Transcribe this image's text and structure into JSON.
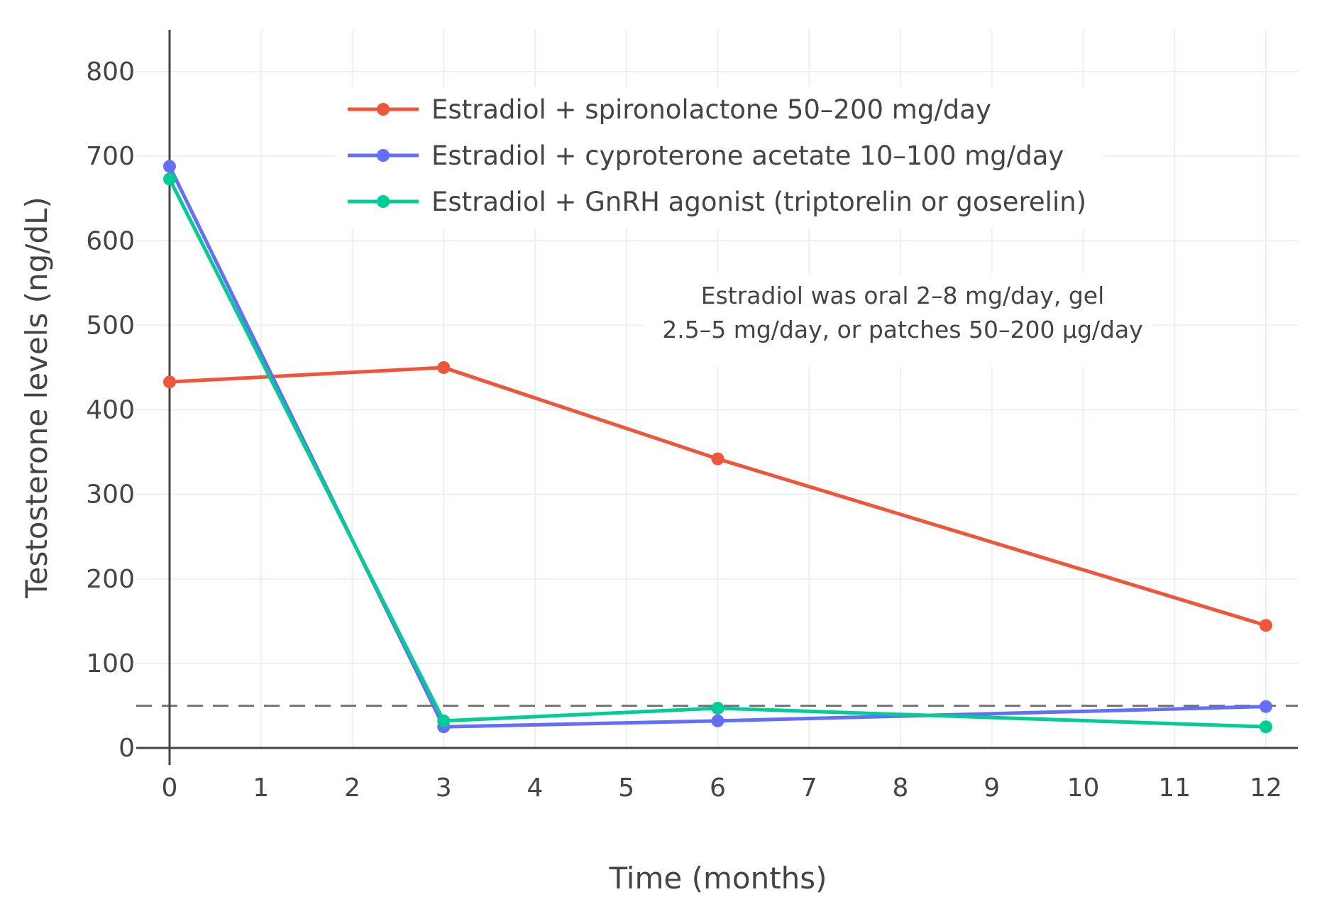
{
  "chart_data": {
    "type": "line",
    "xlabel": "Time (months)",
    "ylabel": "Testosterone levels (ng/dL)",
    "xlim": [
      -0.37,
      12.35
    ],
    "ylim": [
      0,
      850
    ],
    "xticks": [
      0,
      1,
      2,
      3,
      4,
      5,
      6,
      7,
      8,
      9,
      10,
      11,
      12
    ],
    "yticks": [
      0,
      100,
      200,
      300,
      400,
      500,
      600,
      700,
      800
    ],
    "grid": true,
    "legend_position": "top-center",
    "x": [
      0,
      3,
      6,
      12
    ],
    "series": [
      {
        "name": "Estradiol + spironolactone 50–200 mg/day",
        "color": "#EF553B",
        "values": [
          433,
          450,
          342,
          145
        ]
      },
      {
        "name": "Estradiol + cyproterone acetate 10–100 mg/day",
        "color": "#636EFA",
        "values": [
          688,
          25,
          32,
          49
        ]
      },
      {
        "name": "Estradiol + GnRH agonist (triptorelin or goserelin)",
        "color": "#00CC96",
        "values": [
          673,
          32,
          47,
          25
        ]
      }
    ],
    "reference_line": {
      "y": 50,
      "style": "dashed",
      "color": "#777777"
    },
    "annotation": {
      "lines": [
        "Estradiol was oral 2–8 mg/day, gel",
        "2.5–5 mg/day, or patches 50–200 µg/day"
      ]
    }
  }
}
